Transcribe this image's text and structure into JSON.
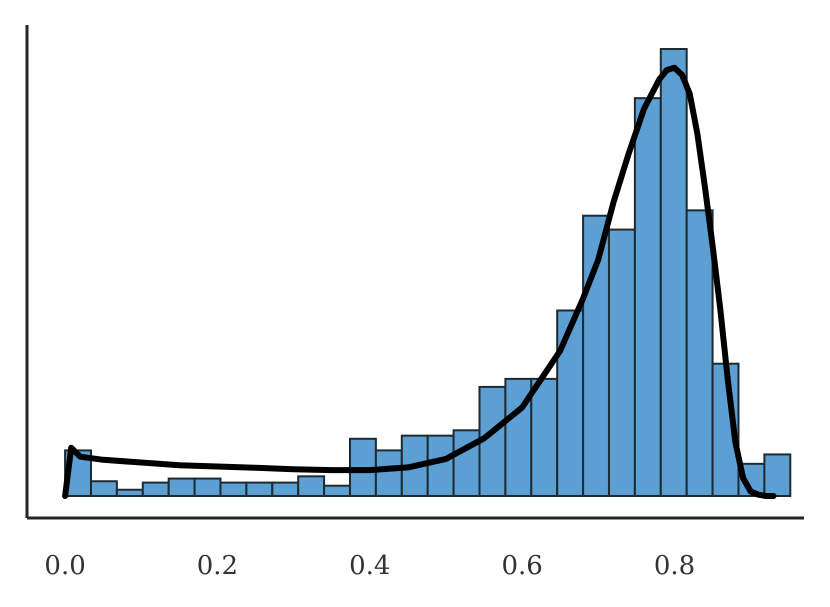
{
  "chart_data": {
    "type": "bar",
    "title": "",
    "xlabel": "",
    "ylabel": "",
    "xlim": [
      -0.05,
      0.97
    ],
    "ylim": [
      0,
      1.0
    ],
    "grid": false,
    "x_ticks": [
      {
        "value": 0.0,
        "label": "0.0"
      },
      {
        "value": 0.2,
        "label": "0.2"
      },
      {
        "value": 0.4,
        "label": "0.4"
      },
      {
        "value": 0.6,
        "label": "0.6"
      },
      {
        "value": 0.8,
        "label": "0.8"
      }
    ],
    "bars": [
      {
        "x0": 0.0,
        "x1": 0.034,
        "value": 0.102
      },
      {
        "x0": 0.034,
        "x1": 0.068,
        "value": 0.033
      },
      {
        "x0": 0.068,
        "x1": 0.102,
        "value": 0.014
      },
      {
        "x0": 0.102,
        "x1": 0.136,
        "value": 0.03
      },
      {
        "x0": 0.136,
        "x1": 0.17,
        "value": 0.039
      },
      {
        "x0": 0.17,
        "x1": 0.204,
        "value": 0.039
      },
      {
        "x0": 0.204,
        "x1": 0.238,
        "value": 0.03
      },
      {
        "x0": 0.238,
        "x1": 0.272,
        "value": 0.03
      },
      {
        "x0": 0.272,
        "x1": 0.306,
        "value": 0.03
      },
      {
        "x0": 0.306,
        "x1": 0.34,
        "value": 0.044
      },
      {
        "x0": 0.34,
        "x1": 0.374,
        "value": 0.023
      },
      {
        "x0": 0.374,
        "x1": 0.408,
        "value": 0.128
      },
      {
        "x0": 0.408,
        "x1": 0.442,
        "value": 0.102
      },
      {
        "x0": 0.442,
        "x1": 0.476,
        "value": 0.135
      },
      {
        "x0": 0.476,
        "x1": 0.51,
        "value": 0.135
      },
      {
        "x0": 0.51,
        "x1": 0.544,
        "value": 0.147
      },
      {
        "x0": 0.544,
        "x1": 0.578,
        "value": 0.244
      },
      {
        "x0": 0.578,
        "x1": 0.612,
        "value": 0.262
      },
      {
        "x0": 0.612,
        "x1": 0.646,
        "value": 0.262
      },
      {
        "x0": 0.646,
        "x1": 0.68,
        "value": 0.415
      },
      {
        "x0": 0.68,
        "x1": 0.714,
        "value": 0.627
      },
      {
        "x0": 0.714,
        "x1": 0.748,
        "value": 0.596
      },
      {
        "x0": 0.748,
        "x1": 0.782,
        "value": 0.89
      },
      {
        "x0": 0.782,
        "x1": 0.816,
        "value": 1.0
      },
      {
        "x0": 0.816,
        "x1": 0.85,
        "value": 0.639
      },
      {
        "x0": 0.85,
        "x1": 0.884,
        "value": 0.296
      },
      {
        "x0": 0.884,
        "x1": 0.918,
        "value": 0.072
      },
      {
        "x0": 0.918,
        "x1": 0.952,
        "value": 0.093
      }
    ],
    "density_curve": {
      "x": [
        0.0,
        0.008,
        0.02,
        0.05,
        0.1,
        0.15,
        0.2,
        0.25,
        0.3,
        0.35,
        0.4,
        0.45,
        0.5,
        0.55,
        0.6,
        0.65,
        0.68,
        0.7,
        0.72,
        0.74,
        0.76,
        0.78,
        0.79,
        0.8,
        0.81,
        0.82,
        0.83,
        0.84,
        0.85,
        0.86,
        0.87,
        0.88,
        0.89,
        0.9,
        0.91,
        0.92,
        0.93
      ],
      "y": [
        0.0,
        0.108,
        0.088,
        0.081,
        0.075,
        0.069,
        0.066,
        0.063,
        0.06,
        0.058,
        0.058,
        0.064,
        0.083,
        0.129,
        0.198,
        0.325,
        0.442,
        0.529,
        0.658,
        0.767,
        0.866,
        0.932,
        0.953,
        0.958,
        0.942,
        0.9,
        0.81,
        0.69,
        0.56,
        0.42,
        0.26,
        0.12,
        0.04,
        0.01,
        0.003,
        0.0,
        0.0
      ]
    }
  }
}
